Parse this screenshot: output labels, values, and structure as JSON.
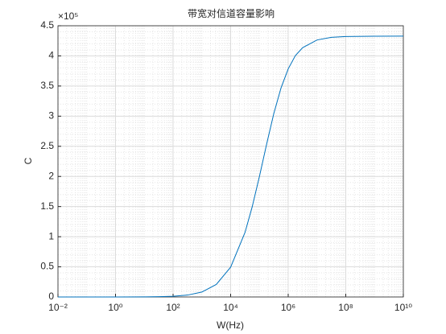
{
  "chart_data": {
    "type": "line",
    "title": "带宽对信道容量影响",
    "xlabel": "W(Hz)",
    "ylabel": "C",
    "y_exponent_label": "×10⁵",
    "x": [
      0.01,
      0.1,
      1,
      10,
      31.6,
      100,
      316,
      1000,
      3162,
      10000,
      31623,
      56234,
      100000,
      177828,
      316228,
      562341,
      1000000,
      1778279,
      3162278,
      10000000,
      31622777,
      100000000,
      1000000000,
      10000000000
    ],
    "series": [
      {
        "name": "C",
        "color": "#0072bd",
        "values": [
          0,
          0.0,
          0.0002,
          0.0015,
          0.0042,
          0.0116,
          0.031,
          0.082,
          0.208,
          0.495,
          1.072,
          1.498,
          2.0,
          2.536,
          3.044,
          3.468,
          3.785,
          4.006,
          4.136,
          4.264,
          4.308,
          4.321,
          4.327,
          4.328
        ]
      }
    ],
    "xscale": "log",
    "xlim": [
      0.01,
      10000000000
    ],
    "xticks": [
      {
        "value": 0.01,
        "label": "10⁻²"
      },
      {
        "value": 1,
        "label": "10⁰"
      },
      {
        "value": 100,
        "label": "10²"
      },
      {
        "value": 10000,
        "label": "10⁴"
      },
      {
        "value": 1000000,
        "label": "10⁶"
      },
      {
        "value": 100000000,
        "label": "10⁸"
      },
      {
        "value": 10000000000,
        "label": "10¹⁰"
      }
    ],
    "ylim": [
      0,
      4.5
    ],
    "yticks": [
      0,
      0.5,
      1,
      1.5,
      2,
      2.5,
      3,
      3.5,
      4,
      4.5
    ],
    "grid": true,
    "minor_grid": true
  }
}
